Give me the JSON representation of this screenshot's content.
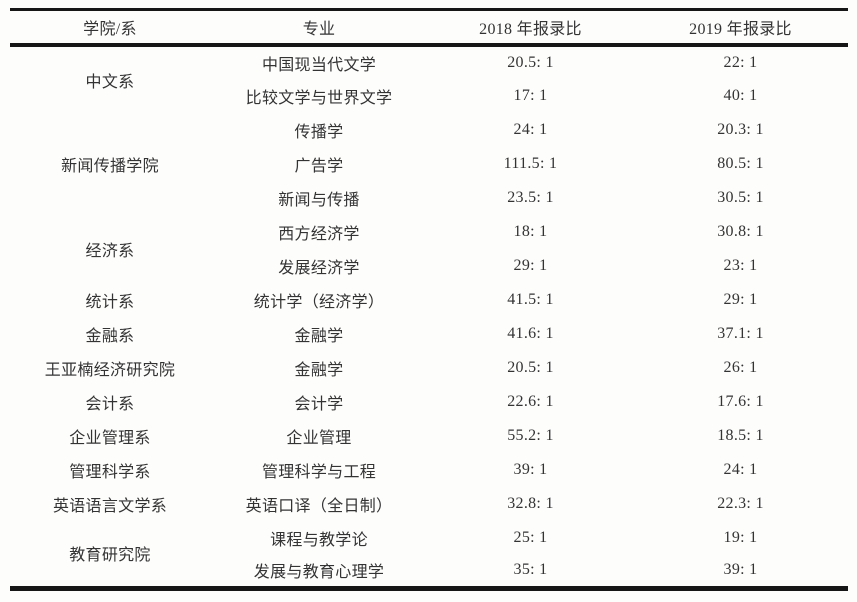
{
  "page": {
    "background_color": "#fdfdfc",
    "rule_color": "#161616",
    "text_color": "#333333"
  },
  "table": {
    "headers": [
      "学院/系",
      "专业",
      "2018 年报录比",
      "2019 年报录比"
    ],
    "groups": [
      {
        "college": "中文系",
        "majors": [
          {
            "major": "中国现当代文学",
            "ratio_2018": "20.5: 1",
            "ratio_2019": "22: 1"
          },
          {
            "major": "比较文学与世界文学",
            "ratio_2018": "17: 1",
            "ratio_2019": "40: 1"
          }
        ]
      },
      {
        "college": "新闻传播学院",
        "majors": [
          {
            "major": "传播学",
            "ratio_2018": "24: 1",
            "ratio_2019": "20.3: 1"
          },
          {
            "major": "广告学",
            "ratio_2018": "111.5: 1",
            "ratio_2019": "80.5: 1"
          },
          {
            "major": "新闻与传播",
            "ratio_2018": "23.5: 1",
            "ratio_2019": "30.5: 1"
          }
        ]
      },
      {
        "college": "经济系",
        "majors": [
          {
            "major": "西方经济学",
            "ratio_2018": "18: 1",
            "ratio_2019": "30.8: 1"
          },
          {
            "major": "发展经济学",
            "ratio_2018": "29: 1",
            "ratio_2019": "23: 1"
          }
        ]
      },
      {
        "college": "统计系",
        "majors": [
          {
            "major": "统计学（经济学）",
            "ratio_2018": "41.5: 1",
            "ratio_2019": "29: 1"
          }
        ]
      },
      {
        "college": "金融系",
        "majors": [
          {
            "major": "金融学",
            "ratio_2018": "41.6: 1",
            "ratio_2019": "37.1: 1"
          }
        ]
      },
      {
        "college": "王亚楠经济研究院",
        "majors": [
          {
            "major": "金融学",
            "ratio_2018": "20.5: 1",
            "ratio_2019": "26: 1"
          }
        ]
      },
      {
        "college": "会计系",
        "majors": [
          {
            "major": "会计学",
            "ratio_2018": "22.6: 1",
            "ratio_2019": "17.6: 1"
          }
        ]
      },
      {
        "college": "企业管理系",
        "majors": [
          {
            "major": "企业管理",
            "ratio_2018": "55.2: 1",
            "ratio_2019": "18.5: 1"
          }
        ]
      },
      {
        "college": "管理科学系",
        "majors": [
          {
            "major": "管理科学与工程",
            "ratio_2018": "39: 1",
            "ratio_2019": "24: 1"
          }
        ]
      },
      {
        "college": "英语语言文学系",
        "majors": [
          {
            "major": "英语口译（全日制）",
            "ratio_2018": "32.8: 1",
            "ratio_2019": "22.3: 1"
          }
        ]
      },
      {
        "college": "教育研究院",
        "majors": [
          {
            "major": "课程与教学论",
            "ratio_2018": "25: 1",
            "ratio_2019": "19: 1"
          },
          {
            "major": "发展与教育心理学",
            "ratio_2018": "35: 1",
            "ratio_2019": "39: 1"
          }
        ]
      }
    ]
  }
}
